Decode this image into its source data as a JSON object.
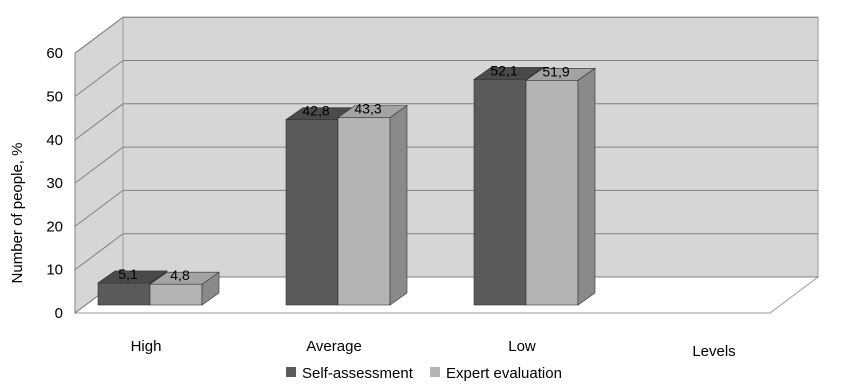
{
  "chart_data": {
    "type": "bar",
    "title": "",
    "xlabel": "Levels",
    "ylabel": "Number of people, %",
    "ylim": [
      0,
      60
    ],
    "yticks": [
      0,
      10,
      20,
      30,
      40,
      50,
      60
    ],
    "categories": [
      "High",
      "Average",
      "Low"
    ],
    "series": [
      {
        "name": "Self-assessment",
        "values": [
          5.1,
          42.8,
          52.1
        ],
        "labels": [
          "5,1",
          "42,8",
          "52,1"
        ]
      },
      {
        "name": "Expert evaluation",
        "values": [
          4.8,
          43.3,
          51.9
        ],
        "labels": [
          "4,8",
          "43,3",
          "51,9"
        ]
      }
    ],
    "grid": true,
    "legend_position": "bottom",
    "colors": {
      "self_front": "#5a5a5a",
      "self_side": "#3f3f3f",
      "self_top": "#4a4a4a",
      "expert_front": "#b4b4b4",
      "expert_side": "#8a8a8a",
      "expert_top": "#a3a3a3",
      "wall": "#d6d6d6",
      "floor": "#ffffff",
      "grid": "#808080"
    }
  }
}
